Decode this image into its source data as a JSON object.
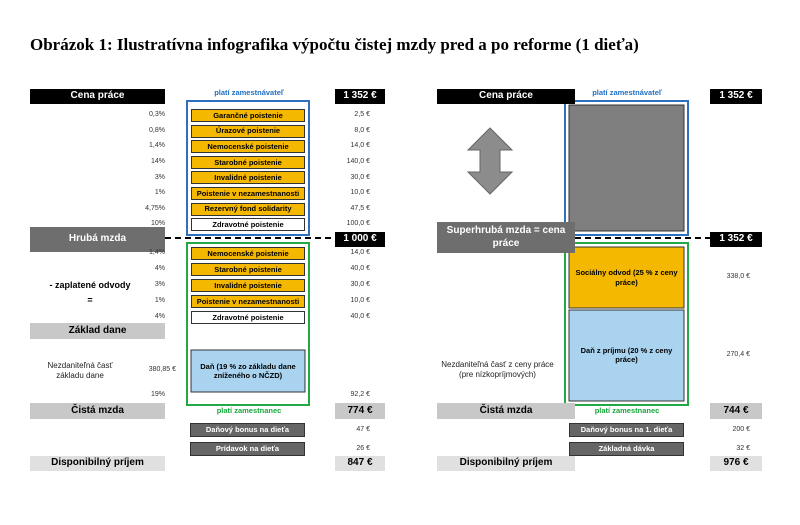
{
  "title": "Obrázok 1: Ilustratívna infografika výpočtu čistej mzdy pred a po reforme (1 dieťa)",
  "left": {
    "labor_cost": {
      "label": "Cena práce",
      "value": "1 352 €"
    },
    "employer_label": "platí zamestnávateľ",
    "employer_contributions": [
      {
        "rate": "0,3%",
        "name": "Garančné poistenie",
        "amount": "2,5 €"
      },
      {
        "rate": "0,8%",
        "name": "Úrazové poistenie",
        "amount": "8,0 €"
      },
      {
        "rate": "1,4%",
        "name": "Nemocenské poistenie",
        "amount": "14,0 €"
      },
      {
        "rate": "14%",
        "name": "Starobné poistenie",
        "amount": "140,0 €"
      },
      {
        "rate": "3%",
        "name": "Invalidné poistenie",
        "amount": "30,0 €"
      },
      {
        "rate": "1%",
        "name": "Poistenie v nezamestnanosti",
        "amount": "10,0 €"
      },
      {
        "rate": "4,75%",
        "name": "Rezervný fond solidarity",
        "amount": "47,5 €"
      },
      {
        "rate": "10%",
        "name": "Zdravotné poistenie",
        "amount": "100,0 €"
      }
    ],
    "gross_wage": {
      "label": "Hrubá mzda",
      "value": "1 000 €"
    },
    "deductions_label": [
      "- zaplatené odvody",
      "="
    ],
    "employee_contributions": [
      {
        "rate": "1,4%",
        "name": "Nemocenské poistenie",
        "amount": "14,0 €"
      },
      {
        "rate": "4%",
        "name": "Starobné poistenie",
        "amount": "40,0 €"
      },
      {
        "rate": "3%",
        "name": "Invalidné poistenie",
        "amount": "30,0 €"
      },
      {
        "rate": "1%",
        "name": "Poistenie v nezamestnanosti",
        "amount": "10,0 €"
      },
      {
        "rate": "4%",
        "name": "Zdravotné poistenie",
        "amount": "40,0 €"
      }
    ],
    "tax_base": "Základ dane",
    "allowance": {
      "label": "Nezdaniteľná časť základu dane",
      "amount": "380,85 €"
    },
    "tax": {
      "rate": "19%",
      "name": "Daň (19 % zo základu dane zníženého o NČZD)",
      "amount": "92,2 €"
    },
    "net_wage": {
      "label": "Čistá mzda",
      "value": "774 €"
    },
    "employee_label": "platí zamestnanec",
    "benefits": [
      {
        "name": "Daňový bonus na dieťa",
        "amount": "47 €"
      },
      {
        "name": "Prídavok na dieťa",
        "amount": "26 €"
      }
    ],
    "disposable_income": {
      "label": "Disponibilný príjem",
      "value": "847 €"
    }
  },
  "right": {
    "labor_cost": {
      "label": "Cena práce",
      "value": "1 352 €"
    },
    "employer_label": "platí zamestnávateľ",
    "super_gross": {
      "label": "Superhrubá mzda = cena práce",
      "value": "1 352 €"
    },
    "social": {
      "name": "Sociálny odvod (25 % z ceny práce)",
      "amount": "338,0 €"
    },
    "tax": {
      "name": "Daň z príjmu (20 % z ceny práce)",
      "amount": "270,4 €"
    },
    "allowance": "Nezdaniteľná časť z ceny práce (pre nízkopríjmových)",
    "net_wage": {
      "label": "Čistá mzda",
      "value": "744 €"
    },
    "employee_label": "platí zamestnanec",
    "benefits": [
      {
        "name": "Daňový bonus na 1. dieťa",
        "amount": "200 €"
      },
      {
        "name": "Základná dávka",
        "amount": "32 €"
      }
    ],
    "disposable_income": {
      "label": "Disponibilný príjem",
      "value": "976 €"
    }
  }
}
